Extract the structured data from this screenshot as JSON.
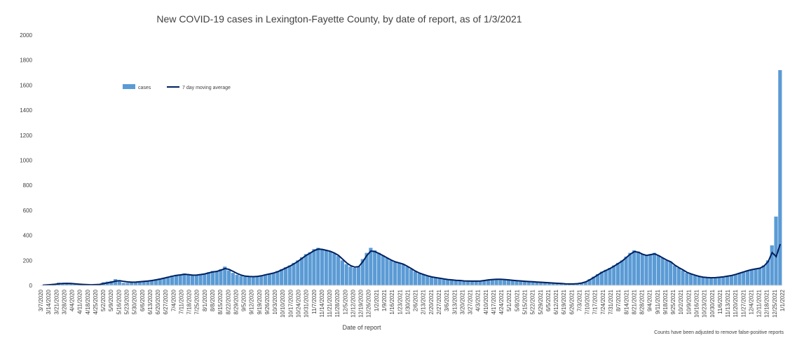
{
  "chart_data": {
    "type": "bar",
    "title": "New COVID-19 cases in Lexington-Fayette County, by date of report, as of 1/3/2021",
    "xlabel": "Date of report",
    "ylabel": "",
    "note": "Counts have been adjusted to remove false-positive reports",
    "ylim": [
      0,
      2000
    ],
    "y_ticks": [
      "0",
      "200",
      "400",
      "600",
      "800",
      "1000",
      "1200",
      "1400",
      "1600",
      "1800",
      "2000"
    ],
    "x_ticks": [
      "3/7/2020",
      "3/14/2020",
      "3/21/2020",
      "3/28/2020",
      "4/4/2020",
      "4/11/2020",
      "4/18/2020",
      "4/25/2020",
      "5/2/2020",
      "5/9/2020",
      "5/16/2020",
      "5/23/2020",
      "5/30/2020",
      "6/6/2020",
      "6/13/2020",
      "6/20/2020",
      "6/27/2020",
      "7/4/2020",
      "7/11/2020",
      "7/18/2020",
      "7/25/2020",
      "8/1/2020",
      "8/8/2020",
      "8/15/2020",
      "8/22/2020",
      "8/29/2020",
      "9/5/2020",
      "9/12/2020",
      "9/19/2020",
      "9/26/2020",
      "10/3/2020",
      "10/10/2020",
      "10/17/2020",
      "10/24/2020",
      "10/31/2020",
      "11/7/2020",
      "11/14/2020",
      "11/21/2020",
      "11/28/2020",
      "12/5/2020",
      "12/12/2020",
      "12/19/2020",
      "12/26/2020",
      "1/2/2021",
      "1/9/2021",
      "1/16/2021",
      "1/23/2021",
      "1/30/2021",
      "2/6/2021",
      "2/13/2021",
      "2/20/2021",
      "2/27/2021",
      "3/6/2021",
      "3/13/2021",
      "3/20/2021",
      "3/27/2021",
      "4/3/2021",
      "4/10/2021",
      "4/17/2021",
      "4/24/2021",
      "5/1/2021",
      "5/8/2021",
      "5/15/2021",
      "5/22/2021",
      "5/29/2021",
      "6/5/2021",
      "6/12/2021",
      "6/19/2021",
      "6/26/2021",
      "7/3/2021",
      "7/10/2021",
      "7/17/2021",
      "7/24/2021",
      "7/31/2021",
      "8/7/2021",
      "8/14/2021",
      "8/21/2021",
      "8/28/2021",
      "9/4/2021",
      "9/11/2021",
      "9/18/2021",
      "9/25/2021",
      "10/2/2021",
      "10/9/2021",
      "10/16/2021",
      "10/23/2021",
      "10/30/2021",
      "11/6/2021",
      "11/13/2021",
      "11/20/2021",
      "11/27/2021",
      "12/4/2021",
      "12/11/2021",
      "12/18/2021",
      "12/25/2021",
      "1/1/2022"
    ],
    "start_date": "3/7/2020",
    "series": [
      {
        "name": "cases",
        "kind": "bar",
        "color": "#5B9BD5",
        "values": [
          2,
          5,
          8,
          12,
          22,
          20,
          18,
          15,
          10,
          8,
          6,
          5,
          4,
          8,
          12,
          25,
          30,
          35,
          50,
          42,
          20,
          20,
          25,
          28,
          30,
          33,
          36,
          40,
          48,
          55,
          62,
          70,
          78,
          85,
          85,
          95,
          82,
          78,
          85,
          90,
          95,
          105,
          115,
          110,
          130,
          150,
          120,
          100,
          85,
          75,
          70,
          68,
          70,
          75,
          80,
          88,
          95,
          100,
          115,
          130,
          145,
          160,
          180,
          200,
          225,
          250,
          265,
          290,
          300,
          290,
          280,
          270,
          255,
          235,
          200,
          170,
          150,
          140,
          150,
          210,
          260,
          300,
          280,
          260,
          240,
          220,
          200,
          185,
          180,
          170,
          150,
          130,
          110,
          95,
          85,
          75,
          65,
          60,
          55,
          50,
          45,
          42,
          40,
          38,
          35,
          35,
          34,
          34,
          36,
          40,
          45,
          48,
          50,
          50,
          48,
          45,
          42,
          38,
          36,
          32,
          30,
          28,
          26,
          24,
          22,
          20,
          18,
          16,
          14,
          12,
          10,
          12,
          14,
          20,
          30,
          50,
          70,
          90,
          110,
          125,
          140,
          160,
          180,
          200,
          230,
          260,
          280,
          270,
          250,
          240,
          250,
          260,
          240,
          220,
          200,
          190,
          160,
          140,
          120,
          100,
          90,
          80,
          70,
          65,
          62,
          60,
          62,
          65,
          70,
          75,
          80,
          90,
          100,
          110,
          120,
          130,
          135,
          140,
          160,
          200,
          320,
          550,
          1720
        ]
      },
      {
        "name": "7 day moving average",
        "kind": "line",
        "color": "#002060",
        "values": [
          2,
          4,
          6,
          9,
          13,
          15,
          16,
          15,
          13,
          10,
          8,
          6,
          5,
          6,
          8,
          14,
          20,
          26,
          34,
          38,
          32,
          28,
          26,
          27,
          29,
          32,
          35,
          39,
          45,
          51,
          58,
          66,
          74,
          80,
          84,
          89,
          86,
          82,
          83,
          87,
          92,
          100,
          108,
          112,
          122,
          135,
          128,
          112,
          95,
          82,
          74,
          71,
          70,
          72,
          77,
          85,
          92,
          99,
          110,
          124,
          139,
          154,
          172,
          192,
          216,
          240,
          258,
          278,
          290,
          288,
          280,
          272,
          258,
          240,
          210,
          180,
          158,
          146,
          150,
          190,
          240,
          275,
          270,
          255,
          238,
          220,
          202,
          188,
          180,
          170,
          153,
          134,
          114,
          98,
          87,
          77,
          68,
          62,
          57,
          52,
          47,
          44,
          41,
          39,
          36,
          35,
          34,
          34,
          35,
          39,
          44,
          47,
          49,
          49,
          47,
          44,
          41,
          38,
          36,
          33,
          31,
          29,
          27,
          25,
          23,
          21,
          19,
          17,
          15,
          13,
          12,
          12,
          14,
          19,
          28,
          45,
          64,
          84,
          104,
          120,
          135,
          154,
          174,
          195,
          222,
          250,
          270,
          265,
          250,
          240,
          246,
          252,
          238,
          220,
          202,
          188,
          162,
          142,
          124,
          104,
          92,
          82,
          72,
          66,
          63,
          61,
          62,
          65,
          69,
          74,
          79,
          88,
          98,
          108,
          118,
          126,
          132,
          138,
          155,
          190,
          262,
          230,
          330
        ]
      }
    ]
  }
}
